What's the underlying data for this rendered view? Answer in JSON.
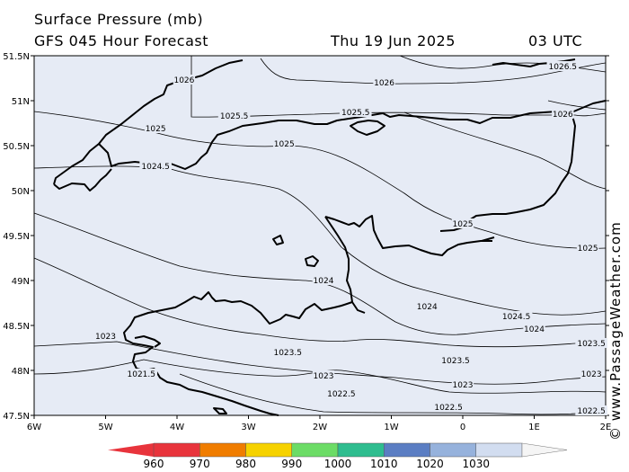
{
  "header": {
    "title": "Surface Pressure (mb)",
    "subtitle": "GFS 045 Hour Forecast",
    "valid_date": "Thu 19 Jun 2025",
    "valid_time": "03 UTC"
  },
  "map": {
    "region": "English Channel / Brittany",
    "lon_range": [
      -6,
      2
    ],
    "lat_range": [
      47.5,
      51.5
    ],
    "lat_labels": [
      "51.5N",
      "51N",
      "50.5N",
      "50N",
      "49.5N",
      "49N",
      "48.5N",
      "48N",
      "47.5N"
    ],
    "lon_labels": [
      "6W",
      "5W",
      "4W",
      "3W",
      "2W",
      "1W",
      "0",
      "1E",
      "2E"
    ],
    "colors": {
      "sea": "#e6ebf5",
      "coast": "#000000",
      "isobar": "#000000"
    },
    "isobar_labels": [
      {
        "text": "1026.5",
        "lon": 1.4,
        "lat": 51.38
      },
      {
        "text": "1026",
        "lon": -3.9,
        "lat": 51.23
      },
      {
        "text": "1026",
        "lon": -1.1,
        "lat": 51.2
      },
      {
        "text": "1026",
        "lon": 1.4,
        "lat": 50.85
      },
      {
        "text": "1025.5",
        "lon": -3.2,
        "lat": 50.83
      },
      {
        "text": "1025.5",
        "lon": -1.5,
        "lat": 50.87
      },
      {
        "text": "1025",
        "lon": -4.3,
        "lat": 50.69
      },
      {
        "text": "1025",
        "lon": -2.5,
        "lat": 50.52
      },
      {
        "text": "1025",
        "lon": 0.0,
        "lat": 49.63
      },
      {
        "text": "1025",
        "lon": 1.75,
        "lat": 49.36
      },
      {
        "text": "1024.5",
        "lon": -4.3,
        "lat": 50.27
      },
      {
        "text": "1024.5",
        "lon": 0.75,
        "lat": 48.6
      },
      {
        "text": "1024",
        "lon": -1.95,
        "lat": 49.0
      },
      {
        "text": "1024",
        "lon": -0.5,
        "lat": 48.71
      },
      {
        "text": "1024",
        "lon": 1.0,
        "lat": 48.46
      },
      {
        "text": "1023.5",
        "lon": -2.45,
        "lat": 48.2
      },
      {
        "text": "1023.5",
        "lon": -0.1,
        "lat": 48.11
      },
      {
        "text": "1023.5",
        "lon": 1.8,
        "lat": 48.3
      },
      {
        "text": "1023",
        "lon": -5.0,
        "lat": 48.38
      },
      {
        "text": "1023",
        "lon": -1.95,
        "lat": 47.94
      },
      {
        "text": "1023",
        "lon": 0.0,
        "lat": 47.84
      },
      {
        "text": "1023",
        "lon": 1.8,
        "lat": 47.96
      },
      {
        "text": "1022.5",
        "lon": -1.7,
        "lat": 47.74
      },
      {
        "text": "1022.5",
        "lon": -0.2,
        "lat": 47.59
      },
      {
        "text": "1022.5",
        "lon": 1.8,
        "lat": 47.55
      },
      {
        "text": "1021.5",
        "lon": -4.5,
        "lat": 47.96
      }
    ]
  },
  "legend": {
    "labels": [
      "960",
      "970",
      "980",
      "990",
      "1000",
      "1010",
      "1020",
      "1030"
    ],
    "colors": [
      "#e8343c",
      "#f07d00",
      "#f6d200",
      "#6cdc66",
      "#2fbd8f",
      "#5b7ec3",
      "#96b2dc",
      "#d2ddf0"
    ]
  },
  "credit": "© www.PassageWeather.com"
}
